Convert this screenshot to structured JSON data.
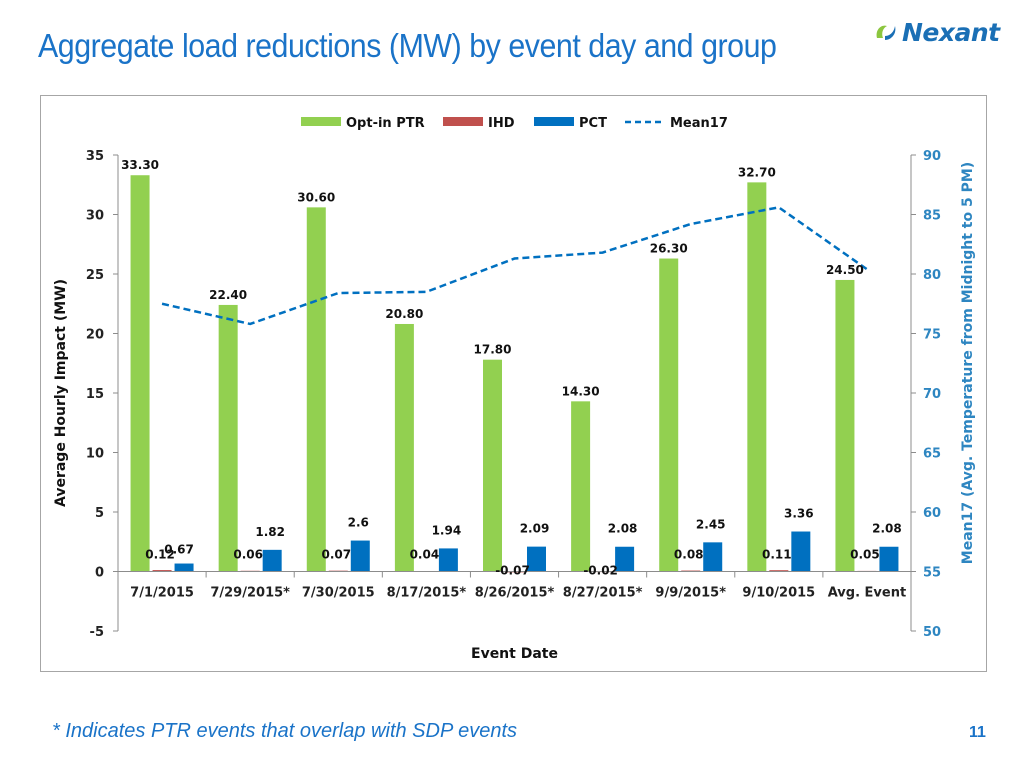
{
  "title": "Aggregate load reductions (MW) by event day and group",
  "logo": {
    "text": "Nexant"
  },
  "footnote": "* Indicates PTR events that overlap with SDP events",
  "page_number": "11",
  "colors": {
    "title": "#1a73c8",
    "opt_in_ptr": "#92d050",
    "ihd": "#c0504d",
    "pct": "#0070c0",
    "mean17": "#0070c0",
    "right_axis": "#2e86c1"
  },
  "chart_data": {
    "type": "bar",
    "title": "",
    "xlabel": "Event Date",
    "ylabel": "Average Hourly Impact (MW)",
    "y2label": "Mean17 (Avg. Temperature from Midnight to 5 PM)",
    "categories": [
      "7/1/2015",
      "7/29/2015*",
      "7/30/2015",
      "8/17/2015*",
      "8/26/2015*",
      "8/27/2015*",
      "9/9/2015*",
      "9/10/2015",
      "Avg. Event"
    ],
    "ylim": [
      -5,
      35
    ],
    "yticks": [
      "-5",
      "0",
      "5",
      "10",
      "15",
      "20",
      "25",
      "30",
      "35"
    ],
    "y2lim": [
      50,
      90
    ],
    "y2ticks": [
      "50",
      "55",
      "60",
      "65",
      "70",
      "75",
      "80",
      "85",
      "90"
    ],
    "legend_position": "top-center",
    "series": [
      {
        "name": "Opt-in PTR",
        "type": "bar",
        "values": [
          33.3,
          22.4,
          30.6,
          20.8,
          17.8,
          14.3,
          26.3,
          32.7,
          24.5
        ],
        "labels": [
          "33.30",
          "22.40",
          "30.60",
          "20.80",
          "17.80",
          "14.30",
          "26.30",
          "32.70",
          "24.50"
        ]
      },
      {
        "name": "IHD",
        "type": "bar",
        "values": [
          0.12,
          0.06,
          0.07,
          0.04,
          -0.07,
          -0.02,
          0.08,
          0.11,
          0.05
        ],
        "labels": [
          "0.12",
          "0.06",
          "0.07",
          "0.04",
          "-0.07",
          "-0.02",
          "0.08",
          "0.11",
          "0.05"
        ]
      },
      {
        "name": "PCT",
        "type": "bar",
        "values": [
          0.67,
          1.82,
          2.6,
          1.94,
          2.09,
          2.08,
          2.45,
          3.36,
          2.08
        ],
        "labels": [
          "0.67",
          "1.82",
          "2.6",
          "1.94",
          "2.09",
          "2.08",
          "2.45",
          "3.36",
          "2.08"
        ]
      },
      {
        "name": "Mean17",
        "type": "line",
        "axis": "secondary",
        "values": [
          77.5,
          75.8,
          78.4,
          78.5,
          81.3,
          81.8,
          84.2,
          85.6,
          80.4
        ]
      }
    ]
  }
}
